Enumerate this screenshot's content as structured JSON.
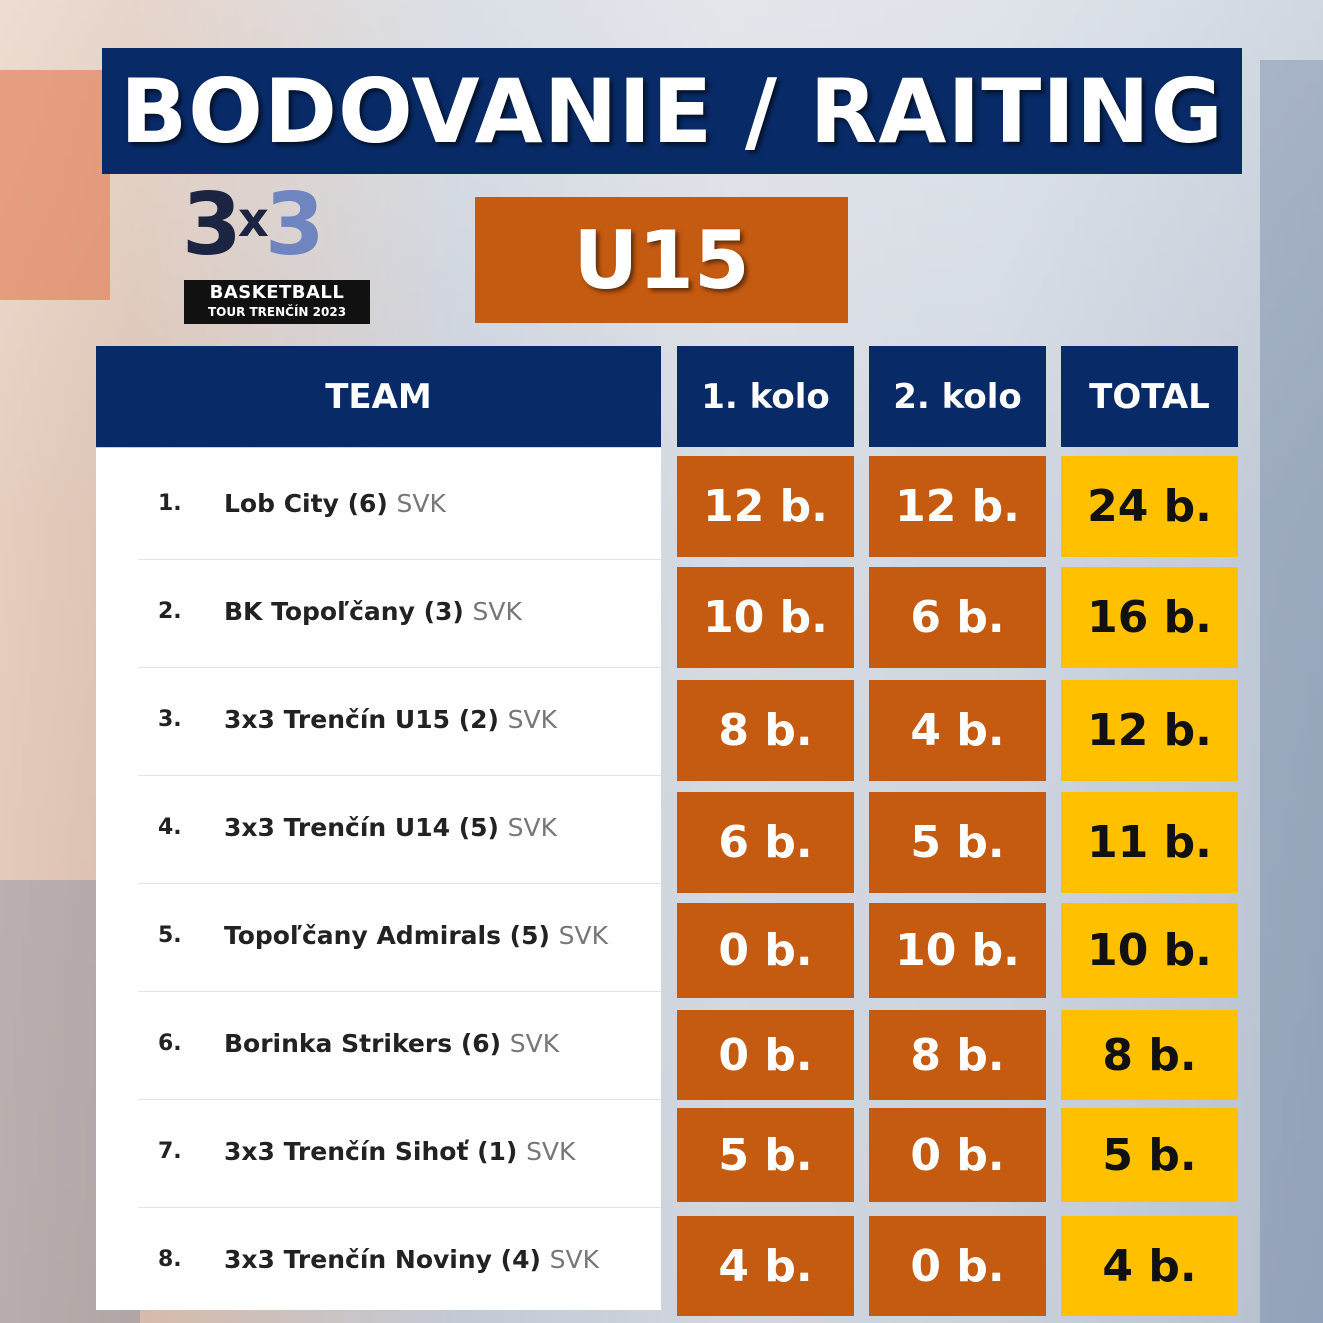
{
  "title": "BODOVANIE / RAITING",
  "logo": {
    "big_left": "3",
    "big_x": "x",
    "big_right": "3",
    "line1": "BASKETBALL",
    "line2": "TOUR TRENČÍN 2023"
  },
  "category": "U15",
  "headers": {
    "team": "TEAM",
    "round1": "1. kolo",
    "round2": "2. kolo",
    "total": "TOTAL"
  },
  "rows": [
    {
      "rank": "1.",
      "name": "Lob City",
      "seed": "(6)",
      "country": "SVK",
      "r1": "12 b.",
      "r2": "12 b.",
      "total": "24 b."
    },
    {
      "rank": "2.",
      "name": "BK Topoľčany",
      "seed": "(3)",
      "country": "SVK",
      "r1": "10 b.",
      "r2": "6 b.",
      "total": "16 b."
    },
    {
      "rank": "3.",
      "name": "3x3 Trenčín U15",
      "seed": "(2)",
      "country": "SVK",
      "r1": "8 b.",
      "r2": "4 b.",
      "total": "12 b."
    },
    {
      "rank": "4.",
      "name": "3x3 Trenčín U14",
      "seed": "(5)",
      "country": "SVK",
      "r1": "6 b.",
      "r2": "5 b.",
      "total": "11 b."
    },
    {
      "rank": "5.",
      "name": "Topoľčany Admirals",
      "seed": "(5)",
      "country": "SVK",
      "r1": "0 b.",
      "r2": "10 b.",
      "total": "10 b."
    },
    {
      "rank": "6.",
      "name": "Borinka Strikers",
      "seed": "(6)",
      "country": "SVK",
      "r1": "0 b.",
      "r2": "8 b.",
      "total": "8 b."
    },
    {
      "rank": "7.",
      "name": "3x3 Trenčín Sihoť",
      "seed": "(1)",
      "country": "SVK",
      "r1": "5 b.",
      "r2": "0 b.",
      "total": "5 b."
    },
    {
      "rank": "8.",
      "name": "3x3 Trenčín Noviny",
      "seed": "(4)",
      "country": "SVK",
      "r1": "4 b.",
      "r2": "0 b.",
      "total": "4 b."
    }
  ],
  "colors": {
    "navy": "#082a66",
    "orange": "#c55a11",
    "yellow": "#ffc000"
  }
}
